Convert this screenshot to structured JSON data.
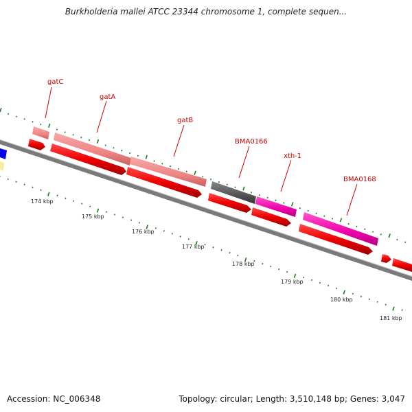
{
  "title": "Burkholderia mallei ATCC 23344 chromosome 1, complete sequen...",
  "footer": {
    "accession": "Accession: NC_006348",
    "stats": "Topology: circular; Length: 3,510,148 bp; Genes: 3,047"
  },
  "colors": {
    "backbone": "#7a7a7a",
    "cds": "#ee0000",
    "gene_pink": "#f08a8a",
    "gene_gray": "#555555",
    "gene_magenta": "#ee00aa",
    "tick": "#1a7a1a",
    "label": "#cc0000"
  },
  "scale_labels": [
    "174 kbp",
    "175 kbp",
    "176 kbp",
    "177 kbp",
    "178 kbp",
    "179 kbp",
    "180 kbp",
    "181 kbp"
  ],
  "genes": [
    {
      "name": "gatC",
      "color": "gene_pink"
    },
    {
      "name": "gatA",
      "color": "gene_pink"
    },
    {
      "name": "gatB",
      "color": "gene_pink"
    },
    {
      "name": "BMA0166",
      "color": "gene_gray"
    },
    {
      "name": "xth-1",
      "color": "gene_magenta"
    },
    {
      "name": "BMA0168",
      "color": "gene_magenta"
    }
  ]
}
